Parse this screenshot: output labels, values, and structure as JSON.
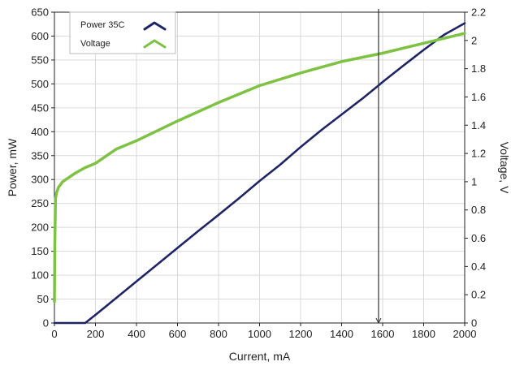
{
  "chart_data": {
    "type": "line",
    "x_axis": {
      "label": "Current, mA",
      "range": [
        0,
        2000
      ],
      "ticks": [
        "0",
        "200",
        "400",
        "600",
        "800",
        "1000",
        "1200",
        "1400",
        "1600",
        "1800",
        "2000"
      ]
    },
    "y_axis_left": {
      "label": "Power, mW",
      "range": [
        0,
        650
      ],
      "ticks": [
        "0",
        "50",
        "100",
        "150",
        "200",
        "250",
        "300",
        "350",
        "400",
        "450",
        "500",
        "550",
        "600",
        "650"
      ]
    },
    "y_axis_right": {
      "label": "Voltage, V",
      "range": [
        0,
        2.2
      ],
      "ticks": [
        "0",
        "0.2",
        "0.4",
        "0.6",
        "0.8",
        "1",
        "1.2",
        "1.4",
        "1.6",
        "1.8",
        "2",
        "2.2"
      ]
    },
    "grid": true,
    "legend_position": "top-left",
    "cursor": {
      "x": 1580
    },
    "series": [
      {
        "name": "Power 35C",
        "axis": "left",
        "color": "#1f2466",
        "x": [
          0,
          150,
          200,
          300,
          400,
          500,
          600,
          700,
          800,
          900,
          1000,
          1100,
          1200,
          1300,
          1400,
          1500,
          1580,
          1600,
          1700,
          1800,
          1900,
          2000
        ],
        "y": [
          0,
          0,
          17,
          52,
          87,
          122,
          157,
          192,
          226,
          261,
          297,
          331,
          368,
          403,
          436,
          469,
          497,
          504,
          538,
          571,
          603,
          627
        ]
      },
      {
        "name": "Voltage",
        "axis": "right",
        "color": "#7dc242",
        "x": [
          0,
          2,
          5,
          10,
          20,
          40,
          60,
          100,
          150,
          200,
          300,
          400,
          600,
          800,
          1000,
          1200,
          1400,
          1600,
          1800,
          2000
        ],
        "y": [
          0.15,
          0.55,
          0.88,
          0.92,
          0.96,
          1.0,
          1.02,
          1.06,
          1.1,
          1.13,
          1.23,
          1.29,
          1.43,
          1.56,
          1.68,
          1.77,
          1.85,
          1.91,
          1.98,
          2.05
        ]
      }
    ]
  }
}
